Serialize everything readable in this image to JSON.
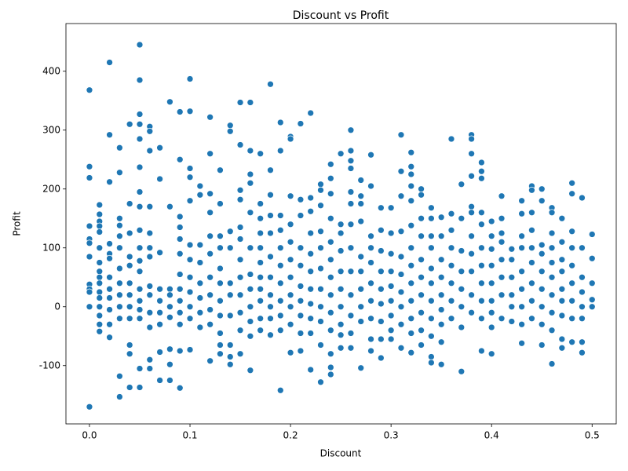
{
  "chart_data": {
    "type": "scatter",
    "title": "Discount vs Profit",
    "x_label": "Discount",
    "y_label": "Profit",
    "color": "#1f77b4",
    "xlim": [
      -0.0234,
      0.524
    ],
    "ylim": [
      -199,
      481
    ],
    "xticks": [
      {
        "value": 0,
        "label": "0.0"
      },
      0.1,
      0.2,
      0.3,
      0.4,
      0.5
    ],
    "yticks": [
      -100,
      0,
      100,
      200,
      300,
      400
    ],
    "x": [
      0,
      0,
      0,
      0,
      0,
      0,
      0,
      0,
      0,
      0,
      0,
      0,
      0.01,
      0.01,
      0.01,
      0.01,
      0.01,
      0.01,
      0.01,
      0.01,
      0.01,
      0.01,
      0.01,
      0.01,
      0.01,
      0.01,
      0.01,
      0.01,
      0.02,
      0.02,
      0.02,
      0.02,
      0.02,
      0.02,
      0.02,
      0.02,
      0.02,
      0.02,
      0.02,
      0.02,
      0.03,
      0.03,
      0.03,
      0.03,
      0.03,
      0.03,
      0.03,
      0.03,
      0.03,
      0.03,
      0.03,
      0.03,
      0.03,
      0.04,
      0.04,
      0.04,
      0.04,
      0.04,
      0.04,
      0.04,
      0.04,
      0.04,
      0.04,
      0.04,
      0.04,
      0.05,
      0.05,
      0.05,
      0.05,
      0.05,
      0.05,
      0.05,
      0.05,
      0.05,
      0.05,
      0.05,
      0.05,
      0.05,
      0.05,
      0.05,
      0.05,
      0.05,
      0.05,
      0.06,
      0.06,
      0.06,
      0.06,
      0.06,
      0.06,
      0.06,
      0.06,
      0.06,
      0.06,
      0.06,
      0.06,
      0.06,
      0.07,
      0.07,
      0.07,
      0.07,
      0.07,
      0.07,
      0.07,
      0.07,
      0.07,
      0.08,
      0.08,
      0.08,
      0.08,
      0.08,
      0.08,
      0.08,
      0.08,
      0.08,
      0.09,
      0.09,
      0.09,
      0.09,
      0.09,
      0.09,
      0.09,
      0.09,
      0.09,
      0.09,
      0.09,
      0.09,
      0.09,
      0.1,
      0.1,
      0.1,
      0.1,
      0.1,
      0.1,
      0.1,
      0.1,
      0.1,
      0.1,
      0.1,
      0.1,
      0.11,
      0.11,
      0.11,
      0.11,
      0.11,
      0.11,
      0.11,
      0.11,
      0.12,
      0.12,
      0.12,
      0.12,
      0.12,
      0.12,
      0.12,
      0.12,
      0.12,
      0.12,
      0.12,
      0.13,
      0.13,
      0.13,
      0.13,
      0.13,
      0.13,
      0.13,
      0.13,
      0.13,
      0.13,
      0.13,
      0.14,
      0.14,
      0.14,
      0.14,
      0.14,
      0.14,
      0.14,
      0.14,
      0.14,
      0.14,
      0.15,
      0.15,
      0.15,
      0.15,
      0.15,
      0.15,
      0.15,
      0.15,
      0.15,
      0.15,
      0.15,
      0.15,
      0.16,
      0.16,
      0.16,
      0.16,
      0.16,
      0.16,
      0.16,
      0.16,
      0.16,
      0.16,
      0.16,
      0.16,
      0.17,
      0.17,
      0.17,
      0.17,
      0.17,
      0.17,
      0.17,
      0.17,
      0.17,
      0.17,
      0.17,
      0.18,
      0.18,
      0.18,
      0.18,
      0.18,
      0.18,
      0.18,
      0.18,
      0.18,
      0.18,
      0.18,
      0.19,
      0.19,
      0.19,
      0.19,
      0.19,
      0.19,
      0.19,
      0.19,
      0.19,
      0.19,
      0.19,
      0.2,
      0.2,
      0.2,
      0.2,
      0.2,
      0.2,
      0.2,
      0.2,
      0.2,
      0.2,
      0.2,
      0.21,
      0.21,
      0.21,
      0.21,
      0.21,
      0.21,
      0.21,
      0.21,
      0.21,
      0.21,
      0.22,
      0.22,
      0.22,
      0.22,
      0.22,
      0.22,
      0.22,
      0.22,
      0.22,
      0.22,
      0.22,
      0.23,
      0.23,
      0.23,
      0.23,
      0.23,
      0.23,
      0.23,
      0.23,
      0.23,
      0.23,
      0.23,
      0.24,
      0.24,
      0.24,
      0.24,
      0.24,
      0.24,
      0.24,
      0.24,
      0.24,
      0.24,
      0.24,
      0.24,
      0.24,
      0.25,
      0.25,
      0.25,
      0.25,
      0.25,
      0.25,
      0.25,
      0.25,
      0.25,
      0.25,
      0.26,
      0.26,
      0.26,
      0.26,
      0.26,
      0.26,
      0.26,
      0.26,
      0.26,
      0.26,
      0.26,
      0.26,
      0.26,
      0.27,
      0.27,
      0.27,
      0.27,
      0.27,
      0.27,
      0.27,
      0.27,
      0.27,
      0.27,
      0.28,
      0.28,
      0.28,
      0.28,
      0.28,
      0.28,
      0.28,
      0.28,
      0.28,
      0.28,
      0.29,
      0.29,
      0.29,
      0.29,
      0.29,
      0.29,
      0.29,
      0.29,
      0.29,
      0.3,
      0.3,
      0.3,
      0.3,
      0.3,
      0.3,
      0.3,
      0.3,
      0.3,
      0.31,
      0.31,
      0.31,
      0.31,
      0.31,
      0.31,
      0.31,
      0.31,
      0.31,
      0.31,
      0.32,
      0.32,
      0.32,
      0.32,
      0.32,
      0.32,
      0.32,
      0.32,
      0.32,
      0.32,
      0.32,
      0.32,
      0.32,
      0.33,
      0.33,
      0.33,
      0.33,
      0.33,
      0.33,
      0.33,
      0.33,
      0.33,
      0.33,
      0.34,
      0.34,
      0.34,
      0.34,
      0.34,
      0.34,
      0.34,
      0.34,
      0.34,
      0.34,
      0.34,
      0.35,
      0.35,
      0.35,
      0.35,
      0.35,
      0.35,
      0.35,
      0.35,
      0.35,
      0.36,
      0.36,
      0.36,
      0.36,
      0.36,
      0.36,
      0.36,
      0.36,
      0.37,
      0.37,
      0.37,
      0.37,
      0.37,
      0.37,
      0.37,
      0.37,
      0.38,
      0.38,
      0.38,
      0.38,
      0.38,
      0.38,
      0.38,
      0.38,
      0.38,
      0.38,
      0.38,
      0.39,
      0.39,
      0.39,
      0.39,
      0.39,
      0.39,
      0.39,
      0.39,
      0.39,
      0.39,
      0.39,
      0.4,
      0.4,
      0.4,
      0.4,
      0.4,
      0.4,
      0.4,
      0.4,
      0.4,
      0.41,
      0.41,
      0.41,
      0.41,
      0.41,
      0.41,
      0.41,
      0.41,
      0.42,
      0.42,
      0.42,
      0.42,
      0.42,
      0.42,
      0.43,
      0.43,
      0.43,
      0.43,
      0.43,
      0.43,
      0.43,
      0.43,
      0.43,
      0.44,
      0.44,
      0.44,
      0.44,
      0.44,
      0.44,
      0.44,
      0.44,
      0.44,
      0.45,
      0.45,
      0.45,
      0.45,
      0.45,
      0.45,
      0.45,
      0.45,
      0.45,
      0.46,
      0.46,
      0.46,
      0.46,
      0.46,
      0.46,
      0.46,
      0.46,
      0.46,
      0.46,
      0.47,
      0.47,
      0.47,
      0.47,
      0.47,
      0.47,
      0.47,
      0.47,
      0.47,
      0.48,
      0.48,
      0.48,
      0.48,
      0.48,
      0.48,
      0.48,
      0.48,
      0.48,
      0.49,
      0.49,
      0.49,
      0.49,
      0.49,
      0.49,
      0.49,
      0.49,
      0.5,
      0.5,
      0.5,
      0.5,
      0.5
    ],
    "values": [
      368,
      238,
      219,
      137,
      115,
      108,
      85,
      38,
      30,
      25,
      0,
      -170,
      173,
      157,
      145,
      137,
      127,
      100,
      75,
      60,
      50,
      40,
      25,
      15,
      0,
      -15,
      -30,
      -42,
      415,
      292,
      212,
      107,
      90,
      82,
      50,
      30,
      15,
      -5,
      -30,
      -52,
      270,
      228,
      150,
      138,
      120,
      100,
      65,
      40,
      20,
      0,
      -20,
      -118,
      -153,
      310,
      175,
      125,
      85,
      70,
      40,
      20,
      0,
      -20,
      -65,
      -80,
      -137,
      445,
      385,
      327,
      310,
      285,
      237,
      195,
      170,
      130,
      100,
      78,
      60,
      30,
      10,
      -5,
      -20,
      -105,
      -137,
      306,
      298,
      265,
      170,
      125,
      100,
      85,
      35,
      20,
      -10,
      -35,
      -90,
      -105,
      270,
      217,
      92,
      30,
      10,
      -10,
      -30,
      -77,
      -125,
      348,
      170,
      30,
      20,
      0,
      -18,
      -72,
      -98,
      -125,
      331,
      250,
      153,
      135,
      115,
      90,
      55,
      30,
      10,
      -10,
      -30,
      -75,
      -138,
      387,
      332,
      235,
      220,
      180,
      105,
      80,
      50,
      25,
      0,
      -20,
      -73,
      205,
      190,
      105,
      75,
      40,
      15,
      -10,
      -35,
      322,
      260,
      192,
      160,
      120,
      90,
      50,
      20,
      -5,
      -30,
      -92,
      232,
      175,
      120,
      100,
      65,
      40,
      10,
      -15,
      -45,
      -65,
      -80,
      308,
      298,
      128,
      100,
      40,
      20,
      -15,
      -65,
      -85,
      -98,
      347,
      275,
      198,
      182,
      135,
      115,
      80,
      50,
      20,
      -10,
      -40,
      -80,
      347,
      265,
      225,
      210,
      160,
      100,
      55,
      30,
      0,
      -25,
      -50,
      -108,
      260,
      175,
      150,
      125,
      100,
      75,
      50,
      30,
      10,
      -20,
      -40,
      378,
      232,
      190,
      155,
      125,
      85,
      50,
      20,
      0,
      -20,
      -48,
      313,
      265,
      155,
      130,
      100,
      70,
      40,
      10,
      -15,
      -40,
      -142,
      289,
      285,
      188,
      140,
      110,
      80,
      50,
      20,
      0,
      -30,
      -78,
      311,
      182,
      155,
      100,
      70,
      35,
      10,
      -15,
      -45,
      -75,
      329,
      185,
      162,
      125,
      90,
      60,
      30,
      5,
      -20,
      -45,
      -107,
      208,
      198,
      172,
      128,
      100,
      65,
      30,
      0,
      -25,
      -65,
      -128,
      242,
      218,
      192,
      150,
      110,
      80,
      50,
      20,
      -10,
      -40,
      -80,
      -103,
      -115,
      260,
      140,
      125,
      95,
      60,
      30,
      0,
      -30,
      -48,
      -70,
      300,
      265,
      248,
      235,
      195,
      175,
      140,
      100,
      60,
      20,
      -15,
      -45,
      -70,
      215,
      188,
      175,
      145,
      85,
      60,
      30,
      0,
      -25,
      -104,
      258,
      205,
      120,
      100,
      75,
      40,
      10,
      -20,
      -55,
      -75,
      168,
      130,
      95,
      60,
      30,
      5,
      -25,
      -55,
      -87,
      168,
      125,
      90,
      60,
      35,
      10,
      -15,
      -40,
      -55,
      292,
      230,
      188,
      128,
      85,
      55,
      25,
      0,
      -30,
      -70,
      262,
      238,
      225,
      205,
      180,
      138,
      100,
      70,
      40,
      10,
      -20,
      -45,
      -78,
      200,
      190,
      150,
      120,
      80,
      50,
      20,
      -10,
      -40,
      -65,
      168,
      150,
      120,
      100,
      65,
      40,
      10,
      -20,
      -50,
      -85,
      -95,
      152,
      120,
      80,
      50,
      20,
      -5,
      -30,
      -60,
      -98,
      285,
      158,
      130,
      100,
      70,
      40,
      10,
      -20,
      208,
      150,
      95,
      60,
      30,
      0,
      -35,
      -110,
      292,
      285,
      260,
      222,
      170,
      160,
      120,
      90,
      60,
      20,
      -10,
      245,
      230,
      218,
      160,
      140,
      100,
      70,
      40,
      10,
      -20,
      -75,
      145,
      120,
      98,
      70,
      40,
      10,
      -10,
      -35,
      -80,
      188,
      150,
      125,
      110,
      80,
      50,
      20,
      -20,
      98,
      80,
      50,
      20,
      0,
      -25,
      180,
      158,
      120,
      100,
      60,
      30,
      0,
      -30,
      -62,
      205,
      198,
      160,
      130,
      100,
      75,
      40,
      10,
      -20,
      200,
      180,
      105,
      90,
      60,
      30,
      0,
      -30,
      -65,
      168,
      160,
      125,
      100,
      75,
      50,
      20,
      -10,
      -40,
      -97,
      150,
      110,
      80,
      60,
      30,
      10,
      -15,
      -55,
      -70,
      210,
      192,
      128,
      100,
      70,
      40,
      10,
      -20,
      -60,
      185,
      100,
      50,
      25,
      0,
      -20,
      -60,
      -78,
      123,
      82,
      40,
      12,
      0
    ]
  }
}
